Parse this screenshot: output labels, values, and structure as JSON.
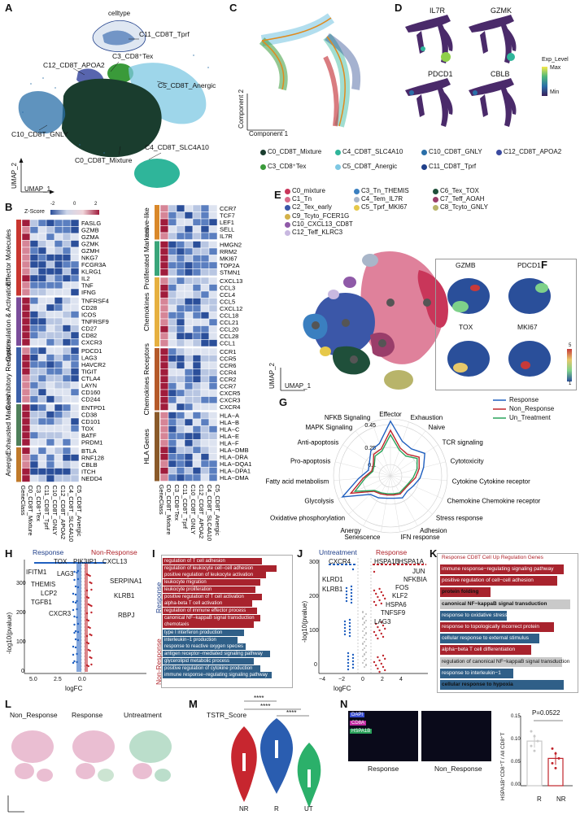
{
  "panels": {
    "A": "A",
    "B": "B",
    "C": "C",
    "D": "D",
    "E": "E",
    "F": "F",
    "G": "G",
    "H": "H",
    "I": "I",
    "J": "J",
    "K": "K",
    "L": "L",
    "M": "M",
    "N": "N"
  },
  "panelA": {
    "legend_title": "celltype",
    "clusters": [
      "C11_CD8T_Tprf",
      "C3_CD8⁺Tex",
      "C12_CD8T_APOA2",
      "C5_CD8T_Anergic",
      "C10_CD8T_GNLY",
      "C4_CD8T_SLC4A10",
      "C0_CD8T_Mixture"
    ],
    "xlabel": "UMAP_1",
    "ylabel": "UMAP_2"
  },
  "panelB": {
    "zscore_label": "Z-Score",
    "scale_ticks": [
      "-2",
      "0",
      "2"
    ],
    "left_groups": [
      {
        "name": "Effector Molecules",
        "genes": [
          "FASLG",
          "GZMB",
          "GZMA",
          "GZMK",
          "GZMH",
          "NKG7",
          "FCGR3A",
          "KLRG1",
          "IL2",
          "TNF",
          "IFNG"
        ]
      },
      {
        "name": "Costimulation & Activation",
        "genes": [
          "TNFRSF4",
          "CD28",
          "ICOS",
          "TNFRSF9",
          "CD27",
          "CD82",
          "CXCR3"
        ]
      },
      {
        "name": "Coinhibitory Receptors",
        "genes": [
          "PDCD1",
          "LAG3",
          "HAVCR2",
          "TIGIT",
          "CTLA4",
          "LAYN",
          "CD160",
          "CD244"
        ]
      },
      {
        "name": "Exhausted Markers",
        "genes": [
          "ENTPD1",
          "CD38",
          "CD101",
          "TOX",
          "BATF",
          "PRDM1"
        ]
      },
      {
        "name": "Anergic",
        "genes": [
          "BTLA",
          "RNF128",
          "CBLB",
          "ITCH",
          "NEDD4"
        ]
      }
    ],
    "right_groups": [
      {
        "name": "naive-like",
        "genes": [
          "CCR7",
          "TCF7",
          "LEF1",
          "SELL",
          "IL7R"
        ]
      },
      {
        "name": "Proliferated Markers",
        "genes": [
          "HMGN2",
          "RRM2",
          "MKI67",
          "TOP2A",
          "STMN1"
        ]
      },
      {
        "name": "Chemokines",
        "genes": [
          "CXCL13",
          "CCL3",
          "CCL4",
          "CCL5",
          "CXCL12",
          "CCL18",
          "CCL21",
          "CCL20",
          "CCL28",
          "CCL1"
        ]
      },
      {
        "name": "Chemokines Receptors",
        "genes": [
          "CCR1",
          "CCR5",
          "CCR6",
          "CCR4",
          "CCR2",
          "CCR7",
          "CXCR5",
          "CXCR3",
          "CXCR4"
        ]
      },
      {
        "name": "HLA Genes",
        "genes": [
          "HLA−A",
          "HLA−B",
          "HLA−C",
          "HLA−E",
          "HLA−F",
          "HLA−DMB",
          "HLA−DRA",
          "HLA−DQA1",
          "HLA−DPA1",
          "HLA−DMA"
        ]
      }
    ],
    "columns": [
      "GeneClass",
      "C0_CD8T_Mixture",
      "C3_CD8⁺Tex",
      "C11_CD8T_Tprf",
      "C10_CD8T_GNLY",
      "C12_CD8T_APOA2",
      "C4_CD8T_SLC4A10",
      "C5_CD8T_Anergic"
    ]
  },
  "panelC": {
    "xlabel": "Component 1",
    "ylabel": "Component 2"
  },
  "panelD": {
    "genes": [
      "IL7R",
      "GZMK",
      "PDCD1",
      "CBLB"
    ],
    "legend_title": "Exp_Level",
    "max_label": "Max",
    "min_label": "Min"
  },
  "panelCDlegend": {
    "items": [
      {
        "label": "C0_CD8T_Mixture",
        "color": "#1a3d2e"
      },
      {
        "label": "C4_CD8T_SLC4A10",
        "color": "#2fb59a"
      },
      {
        "label": "C10_CD8T_GNLY",
        "color": "#2a6fa8"
      },
      {
        "label": "C12_CD8T_APOA2",
        "color": "#3b4aa0"
      },
      {
        "label": "C3_CD8⁺Tex",
        "color": "#3a9a3a"
      },
      {
        "label": "C5_CD8T_Anergic",
        "color": "#7ec8e3"
      },
      {
        "label": "C11_CD8T_Tprf",
        "color": "#1f3f8a"
      }
    ]
  },
  "panelE": {
    "legend": [
      {
        "label": "C0_mixture",
        "color": "#c9365a"
      },
      {
        "label": "C3_Tn_THEMIS",
        "color": "#3a7fc0"
      },
      {
        "label": "C6_Tex_TOX",
        "color": "#1f4f3a"
      },
      {
        "label": "C1_Tn",
        "color": "#d96b8a"
      },
      {
        "label": "C4_Tem_IL7R",
        "color": "#a9b6c9"
      },
      {
        "label": "C7_Teff_AOAH",
        "color": "#9a3d6a"
      },
      {
        "label": "C2_Tex_early",
        "color": "#3b57a8"
      },
      {
        "label": "C5_Tprf_MKI67",
        "color": "#e6c84a"
      },
      {
        "label": "C8_Tcyto_GNLY",
        "color": "#b8b46a"
      },
      {
        "label": "C9_Tcyto_FCER1G",
        "color": "#d3b14a"
      },
      {
        "label": "C10_CXCL13_CD8T",
        "color": "#8f5aa8"
      },
      {
        "label": "C12_Teff_KLRC3",
        "color": "#c8b8e0"
      }
    ],
    "xlabel": "UMAP_1",
    "ylabel": "UMAP_2"
  },
  "panelF": {
    "genes": [
      "GZMB",
      "PDCD1",
      "TOX",
      "MKI67"
    ],
    "scale_max": "5",
    "scale_min": "1"
  },
  "panelG": {
    "axes": [
      "Effector",
      "Exhaustion",
      "Naive",
      "TCR signaling",
      "Cytotoxicity",
      "Cytokine Cytokine receptor",
      "Chemokine Chemokine receptor",
      "Stress response",
      "Adhesion",
      "IFN response",
      "Senescence",
      "Anergy",
      "Oxidative phosphorylation",
      "Glycolysis",
      "Fatty acid metabolism",
      "Pro-apoptosis",
      "Anti-apoptosis",
      "MAPK Signaling",
      "NFKB Signaling"
    ],
    "ticks": [
      "0.45",
      "0.25",
      "0.1"
    ],
    "series": [
      {
        "name": "Response",
        "color": "#1f5fbf",
        "values": [
          0.48,
          0.32,
          0.3,
          0.36,
          0.3,
          0.26,
          0.22,
          0.2,
          0.22,
          0.2,
          0.2,
          0.22,
          0.24,
          0.46,
          0.28,
          0.2,
          0.22,
          0.28,
          0.3
        ]
      },
      {
        "name": "Non_Response",
        "color": "#c0242b",
        "values": [
          0.4,
          0.26,
          0.24,
          0.3,
          0.26,
          0.22,
          0.18,
          0.17,
          0.18,
          0.17,
          0.17,
          0.18,
          0.2,
          0.38,
          0.24,
          0.17,
          0.18,
          0.24,
          0.25
        ]
      },
      {
        "name": "Un_Treatment",
        "color": "#2aa35a",
        "values": [
          0.36,
          0.24,
          0.22,
          0.28,
          0.24,
          0.2,
          0.17,
          0.16,
          0.17,
          0.16,
          0.16,
          0.17,
          0.19,
          0.34,
          0.22,
          0.16,
          0.17,
          0.22,
          0.23
        ]
      }
    ]
  },
  "panelH": {
    "response_label": "Response",
    "nonresponse_label": "Non-Response",
    "genes_left": [
      "TOX",
      "IFITM1",
      "LAG3",
      "THEMIS",
      "LCP2",
      "TGFB1",
      "CXCR3"
    ],
    "genes_right": [
      "PIK3IP1",
      "CXCL13",
      "SERPINA1",
      "KLRB1",
      "RBPJ"
    ],
    "ylabel": "-log10(pvalue)",
    "xlabel": "logFC",
    "yticks": [
      "300",
      "200",
      "100",
      "0"
    ],
    "xticks": [
      "5.0",
      "2.5",
      "0.0"
    ]
  },
  "panelI": {
    "response_label": "Response",
    "nonresponse_label": "Non-Response",
    "response_terms": [
      "regulation of T cell adhesion",
      "regulation of leukocyte cell−cell adhesion",
      "positive regulation of leukocyte activation",
      "leukocyte migration",
      "leukocyte proliferation",
      "positive regulation of T cell activation",
      "alpha-beta T cell activation",
      "regulation of immune effector process",
      "canonical NF−kappaB signal transduction",
      "chemotaxis"
    ],
    "nonresponse_terms": [
      "type I interferon production",
      "interleukin−1 production",
      "response to reactive oxygen species",
      "antigen receptor−mediated signaling pathway",
      "glycerolipid metabolic process",
      "positive regulation of cytokine production",
      "immune response−regulating signaling pathway"
    ]
  },
  "panelJ": {
    "untreatment_label": "Untreatment",
    "response_label": "Response",
    "genes_left": [
      "CXCR4",
      "KLRD1",
      "KLRB1"
    ],
    "genes_right": [
      "HSPA1B",
      "HSPA1A",
      "JUN",
      "NFKBIA",
      "FOS",
      "KLF2",
      "HSPA6",
      "TNFSF9",
      "LAG3"
    ],
    "ylabel": "-log10(pvalue)",
    "xlabel": "logFC",
    "yticks": [
      "300",
      "200",
      "100",
      "0"
    ],
    "xticks": [
      "−4",
      "−2",
      "0",
      "2",
      "4"
    ]
  },
  "panelK": {
    "title": "Response CD8T Cell Up Regulation Genes",
    "terms": [
      "immune response−regulating signaling pathway",
      "positive regulation of cell−cell adhesion",
      "protein folding",
      "canonical NF−kappaB signal transduction",
      "response to oxidative stress",
      "response to topologically incorrect protein",
      "cellular response to external stimulus",
      "alpha−beta T cell differentiation",
      "regulation of canonical NF−kappaB signal transduction",
      "response to interleukin−1",
      "cellular response to hypoxia"
    ]
  },
  "panelL": {
    "groups": [
      "Non_Response",
      "Response",
      "Untreatment"
    ]
  },
  "panelM": {
    "title": "TSTR_Score",
    "groups": [
      "NR",
      "R",
      "UT"
    ],
    "sig": [
      "****",
      "****",
      "****"
    ]
  },
  "panelN": {
    "stains": [
      "DAPI",
      "CD8A",
      "HSPA1B"
    ],
    "groups": [
      "Response",
      "Non_Response"
    ],
    "pvalue": "P=0.0522",
    "ylabel": "HSPA1B⁺CD8⁺T / All CD8⁺T",
    "bar_groups": [
      "R",
      "NR"
    ],
    "bar_values": [
      0.098,
      0.06
    ],
    "yticks": [
      "0.15",
      "0.10",
      "0.05",
      "0.00"
    ]
  }
}
